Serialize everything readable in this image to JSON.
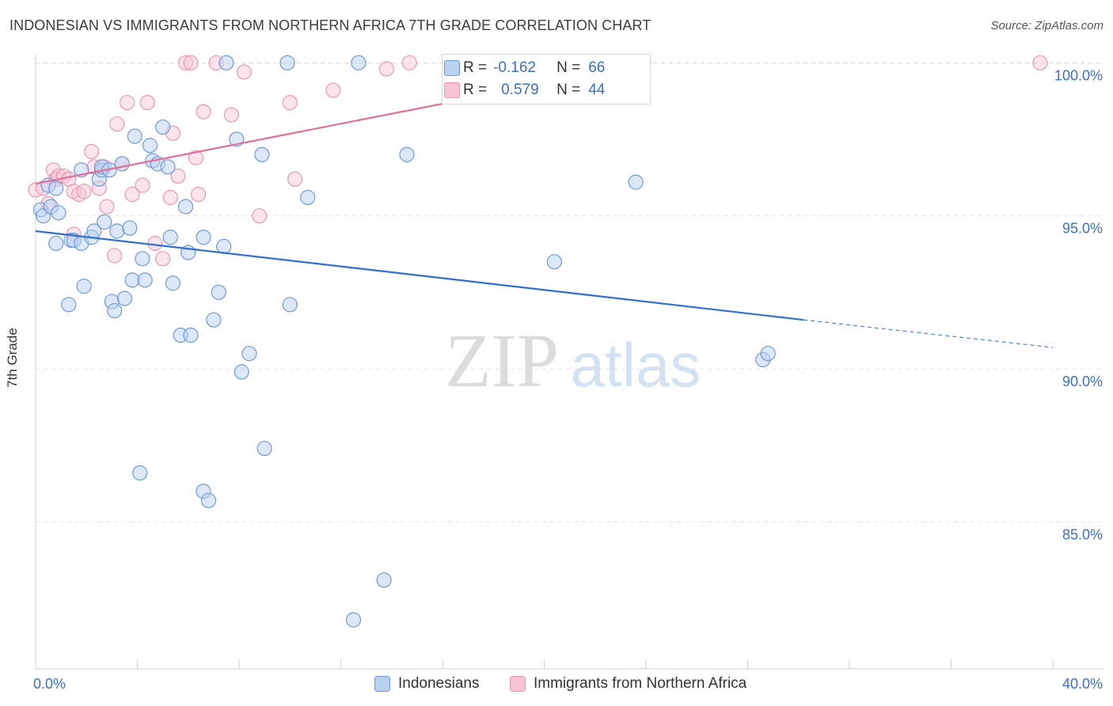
{
  "title": "INDONESIAN VS IMMIGRANTS FROM NORTHERN AFRICA 7TH GRADE CORRELATION CHART",
  "source": "Source: ZipAtlas.com",
  "watermark": {
    "zip": "ZIP",
    "atlas": "atlas"
  },
  "colors": {
    "blue_fill": "#b9d2f2",
    "blue_stroke": "#6f9ad8",
    "blue_line": "#2f6fd0",
    "pink_fill": "#f8c4d4",
    "pink_stroke": "#e899b2",
    "pink_line": "#e0709a",
    "axis_text": "#3a6fc4",
    "grid": "#e3e3e3"
  },
  "stats": {
    "rows": [
      {
        "r_label": "R =",
        "r_value": "-0.162",
        "n_label": "N =",
        "n_value": "66"
      },
      {
        "r_label": "R =",
        "r_value": "0.579",
        "n_label": "N =",
        "n_value": "44"
      }
    ]
  },
  "legend": {
    "series1": "Indonesians",
    "series2": "Immigrants from Northern Africa"
  },
  "chart_data": {
    "type": "scatter",
    "title": "INDONESIAN VS IMMIGRANTS FROM NORTHERN AFRICA 7TH GRADE CORRELATION CHART",
    "xlabel": "",
    "ylabel": "7th Grade",
    "xlim": [
      0,
      40
    ],
    "ylim": [
      80.2,
      100.5
    ],
    "x_tick_labels": [
      "0.0%",
      "40.0%"
    ],
    "y_ticks": [
      85,
      90,
      95,
      100
    ],
    "y_tick_labels": [
      "85.0%",
      "90.0%",
      "95.0%",
      "100.0%"
    ],
    "series": [
      {
        "name": "Indonesians",
        "R": -0.162,
        "N": 66,
        "trend": {
          "x0": 0,
          "y0": 94.5,
          "x1": 30.2,
          "y1": 91.6,
          "dash_to_x": 40,
          "dash_to_y": 90.7
        },
        "points": [
          [
            0.2,
            95.2
          ],
          [
            0.3,
            95.0
          ],
          [
            0.5,
            96.0
          ],
          [
            0.6,
            95.3
          ],
          [
            0.8,
            95.9
          ],
          [
            0.8,
            94.1
          ],
          [
            0.9,
            95.1
          ],
          [
            1.3,
            92.1
          ],
          [
            1.4,
            94.2
          ],
          [
            1.5,
            94.2
          ],
          [
            1.8,
            96.5
          ],
          [
            1.8,
            94.1
          ],
          [
            1.9,
            92.7
          ],
          [
            2.2,
            94.3
          ],
          [
            2.3,
            94.5
          ],
          [
            2.5,
            96.2
          ],
          [
            2.6,
            96.5
          ],
          [
            2.6,
            96.6
          ],
          [
            2.7,
            94.8
          ],
          [
            2.9,
            96.5
          ],
          [
            3.0,
            92.2
          ],
          [
            3.1,
            91.9
          ],
          [
            3.2,
            94.5
          ],
          [
            3.4,
            96.7
          ],
          [
            3.5,
            92.3
          ],
          [
            3.7,
            94.6
          ],
          [
            3.8,
            92.9
          ],
          [
            3.9,
            97.6
          ],
          [
            4.1,
            86.6
          ],
          [
            4.2,
            93.6
          ],
          [
            4.3,
            92.9
          ],
          [
            4.5,
            97.3
          ],
          [
            4.6,
            96.8
          ],
          [
            4.8,
            96.7
          ],
          [
            5.0,
            97.9
          ],
          [
            5.2,
            96.6
          ],
          [
            5.3,
            94.3
          ],
          [
            5.4,
            92.8
          ],
          [
            5.7,
            91.1
          ],
          [
            5.9,
            95.3
          ],
          [
            6.0,
            93.8
          ],
          [
            6.1,
            91.1
          ],
          [
            6.6,
            94.3
          ],
          [
            6.6,
            86.0
          ],
          [
            6.8,
            85.7
          ],
          [
            7.0,
            91.6
          ],
          [
            7.2,
            92.5
          ],
          [
            7.4,
            94.0
          ],
          [
            7.5,
            100.0
          ],
          [
            7.9,
            97.5
          ],
          [
            8.1,
            89.9
          ],
          [
            8.4,
            90.5
          ],
          [
            8.9,
            97.0
          ],
          [
            9.0,
            87.4
          ],
          [
            9.9,
            100.0
          ],
          [
            10.0,
            92.1
          ],
          [
            10.7,
            95.6
          ],
          [
            12.5,
            81.8
          ],
          [
            12.7,
            100.0
          ],
          [
            13.7,
            83.1
          ],
          [
            14.6,
            97.0
          ],
          [
            17.6,
            100.0
          ],
          [
            20.4,
            93.5
          ],
          [
            23.6,
            96.1
          ],
          [
            28.6,
            90.3
          ],
          [
            28.8,
            90.5
          ]
        ]
      },
      {
        "name": "Immigrants from Northern Africa",
        "R": 0.579,
        "N": 44,
        "trend": {
          "x0": 0,
          "y0": 96.05,
          "x1": 24.2,
          "y1": 100.0
        },
        "points": [
          [
            0.0,
            95.85
          ],
          [
            0.3,
            95.9
          ],
          [
            0.5,
            95.4
          ],
          [
            0.7,
            96.5
          ],
          [
            0.8,
            96.2
          ],
          [
            0.9,
            96.3
          ],
          [
            1.1,
            96.3
          ],
          [
            1.3,
            96.2
          ],
          [
            1.5,
            95.8
          ],
          [
            1.5,
            94.4
          ],
          [
            1.7,
            95.7
          ],
          [
            1.9,
            95.8
          ],
          [
            2.2,
            97.1
          ],
          [
            2.3,
            96.6
          ],
          [
            2.5,
            95.9
          ],
          [
            2.7,
            96.6
          ],
          [
            2.8,
            95.3
          ],
          [
            3.1,
            93.7
          ],
          [
            3.2,
            98.0
          ],
          [
            3.4,
            96.7
          ],
          [
            3.6,
            98.7
          ],
          [
            3.8,
            95.7
          ],
          [
            4.2,
            96.0
          ],
          [
            4.4,
            98.7
          ],
          [
            4.7,
            94.1
          ],
          [
            5.0,
            93.6
          ],
          [
            5.3,
            95.6
          ],
          [
            5.4,
            97.7
          ],
          [
            5.6,
            96.3
          ],
          [
            5.9,
            100.0
          ],
          [
            6.1,
            100.0
          ],
          [
            6.3,
            96.9
          ],
          [
            6.4,
            95.7
          ],
          [
            6.6,
            98.4
          ],
          [
            7.1,
            100.0
          ],
          [
            7.7,
            98.3
          ],
          [
            8.2,
            99.7
          ],
          [
            8.8,
            95.0
          ],
          [
            10.0,
            98.7
          ],
          [
            10.2,
            96.2
          ],
          [
            11.7,
            99.1
          ],
          [
            13.8,
            99.8
          ],
          [
            14.7,
            100.0
          ],
          [
            39.5,
            100.0
          ]
        ]
      }
    ]
  }
}
